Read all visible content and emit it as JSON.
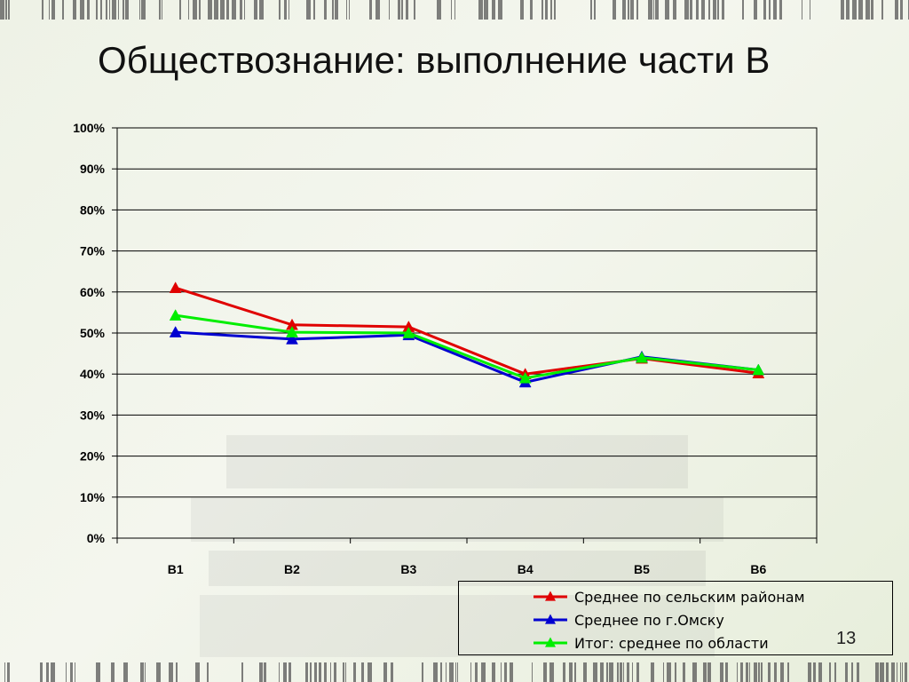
{
  "slide": {
    "title": "Обществознание: выполнение части В",
    "page_number": "13"
  },
  "chart_data": {
    "type": "line",
    "title": "",
    "xlabel": "",
    "ylabel": "",
    "categories": [
      "B1",
      "B2",
      "B3",
      "B4",
      "B5",
      "B6"
    ],
    "y_ticks": [
      "0%",
      "10%",
      "20%",
      "30%",
      "40%",
      "50%",
      "60%",
      "70%",
      "80%",
      "90%",
      "100%"
    ],
    "ylim": [
      0,
      100
    ],
    "grid": true,
    "legend_position": "bottom-right",
    "series": [
      {
        "name": "Среднее по сельским районам",
        "color": "#e00000",
        "values": [
          61,
          52,
          51.5,
          40,
          43.8,
          40.2
        ]
      },
      {
        "name": "Среднее по г.Омску",
        "color": "#0000d0",
        "values": [
          50.2,
          48.5,
          49.5,
          38,
          44.2,
          41
        ]
      },
      {
        "name": "Итог: среднее по области",
        "color": "#00ee00",
        "values": [
          54.3,
          50.2,
          50,
          39,
          44,
          41
        ]
      }
    ]
  }
}
